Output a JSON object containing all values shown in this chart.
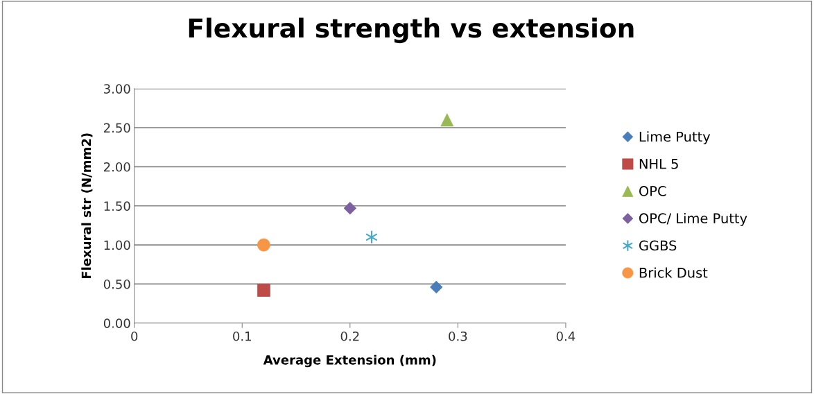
{
  "chart_data": {
    "type": "scatter",
    "title": "Flexural strength vs extension",
    "xlabel": "Average Extension (mm)",
    "ylabel": "Flexural str (N/mm2)",
    "xlim": [
      0,
      0.4
    ],
    "xticks": [
      0,
      0.1,
      0.2,
      0.3,
      0.4
    ],
    "ylim": [
      0,
      3
    ],
    "yticks": [
      {
        "value": 0,
        "label": "0.00"
      },
      {
        "value": 0.5,
        "label": "0.50"
      },
      {
        "value": 1,
        "label": "1.00"
      },
      {
        "value": 1.5,
        "label": "1.50"
      },
      {
        "value": 2,
        "label": "2.00"
      },
      {
        "value": 2.5,
        "label": "2.50"
      },
      {
        "value": 3,
        "label": "3.00"
      }
    ],
    "grid": "y",
    "legend": "right",
    "series": [
      {
        "name": "Lime Putty",
        "color": "#4a7ebb",
        "marker": "diamond",
        "x": [
          0.28
        ],
        "values": [
          0.46
        ]
      },
      {
        "name": "NHL 5",
        "color": "#be4b48",
        "marker": "square",
        "x": [
          0.12
        ],
        "values": [
          0.42
        ]
      },
      {
        "name": "OPC",
        "color": "#98b954",
        "marker": "triangle",
        "x": [
          0.29
        ],
        "values": [
          2.6
        ]
      },
      {
        "name": "OPC/ Lime Putty",
        "color": "#7d60a0",
        "marker": "diamond",
        "x": [
          0.2
        ],
        "values": [
          1.47
        ]
      },
      {
        "name": "GGBS",
        "color": "#46aac5",
        "marker": "cross",
        "x": [
          0.22
        ],
        "values": [
          1.1
        ]
      },
      {
        "name": "Brick Dust",
        "color": "#f79646",
        "marker": "circle",
        "x": [
          0.12
        ],
        "values": [
          1.0
        ]
      }
    ]
  }
}
